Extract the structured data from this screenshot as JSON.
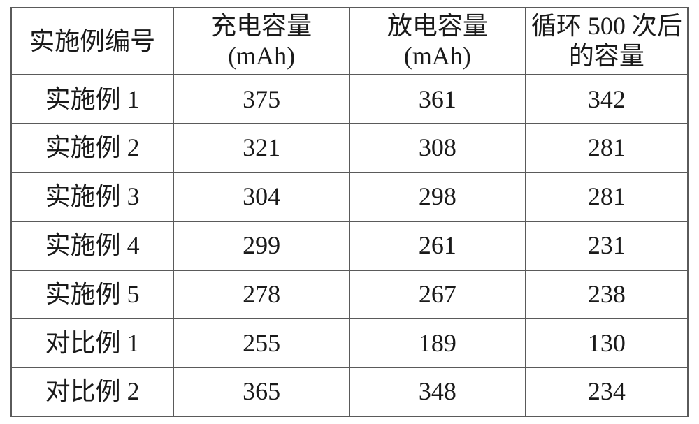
{
  "table": {
    "columns": [
      {
        "line1": "实施例编号",
        "line2": ""
      },
      {
        "line1": "充电容量",
        "line2": "(mAh)"
      },
      {
        "line1": "放电容量",
        "line2": "(mAh)"
      },
      {
        "line1": "循环 500 次后",
        "line2": "的容量"
      }
    ],
    "rows": [
      {
        "label": "实施例 1",
        "charge": "375",
        "discharge": "361",
        "cycle": "342"
      },
      {
        "label": "实施例 2",
        "charge": "321",
        "discharge": "308",
        "cycle": "281"
      },
      {
        "label": "实施例 3",
        "charge": "304",
        "discharge": "298",
        "cycle": "281"
      },
      {
        "label": "实施例 4",
        "charge": "299",
        "discharge": "261",
        "cycle": "231"
      },
      {
        "label": "实施例 5",
        "charge": "278",
        "discharge": "267",
        "cycle": "238"
      },
      {
        "label": "对比例 1",
        "charge": "255",
        "discharge": "189",
        "cycle": "130"
      },
      {
        "label": "对比例 2",
        "charge": "365",
        "discharge": "348",
        "cycle": "234"
      }
    ],
    "border_color": "#5a5a5a",
    "text_color": "#1a1a1a",
    "background_color": "#ffffff",
    "font_size_pt": 27,
    "col_widths_pct": [
      24,
      26,
      26,
      24
    ]
  }
}
